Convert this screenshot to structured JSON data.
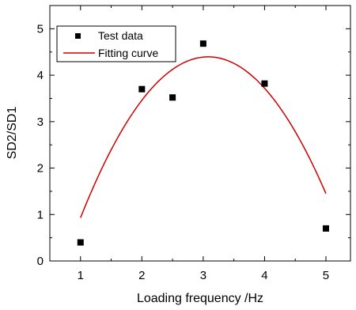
{
  "chart_data": {
    "type": "scatter",
    "xlabel": "Loading frequency /Hz",
    "ylabel": "SD2/SD1",
    "xlim": [
      0.5,
      5.4
    ],
    "ylim": [
      0,
      5.5
    ],
    "x_ticks": [
      1,
      2,
      3,
      4,
      5
    ],
    "y_ticks": [
      0,
      1,
      2,
      3,
      4,
      5
    ],
    "grid": false,
    "legend_position": "top-left",
    "series": [
      {
        "name": "Test data",
        "kind": "scatter",
        "marker": "square",
        "color": "#000000",
        "x": [
          1,
          2,
          2.5,
          3,
          4,
          5
        ],
        "y": [
          0.4,
          3.7,
          3.52,
          4.68,
          3.82,
          0.7
        ]
      },
      {
        "name": "Fitting curve",
        "kind": "line",
        "color": "#cc0000",
        "model": "quadratic",
        "coefficients": [
          -3.2,
          4.93,
          -0.8
        ],
        "x_range": [
          1,
          5
        ]
      }
    ]
  }
}
